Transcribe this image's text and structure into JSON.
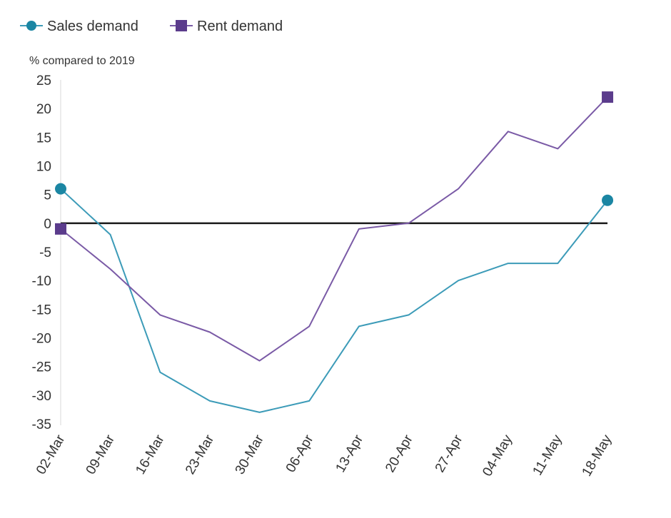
{
  "chart_data": {
    "type": "line",
    "ylabel": "% compared to 2019",
    "categories": [
      "02-Mar",
      "09-Mar",
      "16-Mar",
      "23-Mar",
      "30-Mar",
      "06-Apr",
      "13-Apr",
      "20-Apr",
      "27-Apr",
      "04-May",
      "11-May",
      "18-May"
    ],
    "series": [
      {
        "name": "Sales demand",
        "values": [
          6,
          -2,
          -26,
          -31,
          -33,
          -31,
          -18,
          -16,
          -10,
          -7,
          -7,
          4
        ],
        "color": "#3c9bb8",
        "marker_color": "#1b86a3",
        "marker": "circle"
      },
      {
        "name": "Rent demand",
        "values": [
          -1,
          -8,
          -16,
          -19,
          -24,
          -18,
          -1,
          0,
          6,
          16,
          13,
          22
        ],
        "color": "#7a5aa6",
        "marker_color": "#5b3c8c",
        "marker": "square"
      }
    ],
    "ylim": [
      -35,
      25
    ],
    "yticks": [
      "25",
      "20",
      "15",
      "10",
      "5",
      "0",
      "-5",
      "-10",
      "-15",
      "-20",
      "-25",
      "-30",
      "-35"
    ],
    "zero_line": true,
    "grid": false,
    "legend_position": "top-left"
  }
}
